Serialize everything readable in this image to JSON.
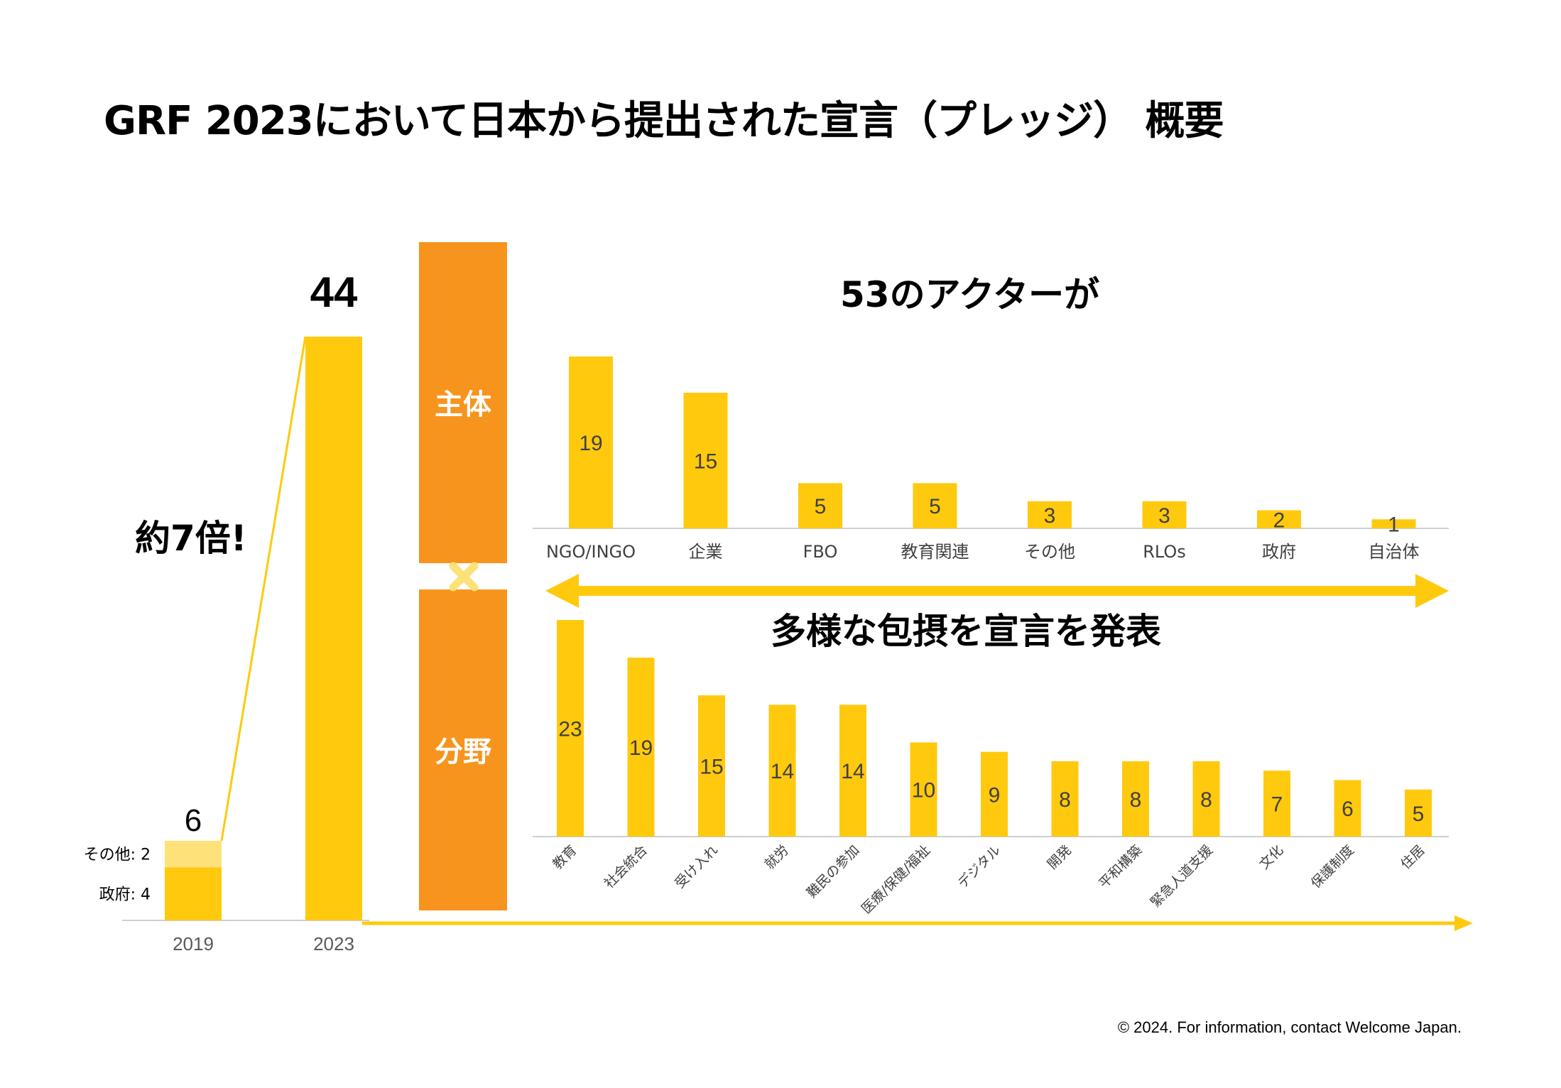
{
  "title": "GRF 2023において日本から提出された宣言（プレッジ） 概要",
  "footer": "© 2024. For information, contact Welcome Japan.",
  "colors": {
    "bar": "#FFC90E",
    "bar_light": "#FFE17A",
    "panel": "#F7941D",
    "cross": "#FFE17A"
  },
  "growth": {
    "label": "約7倍!",
    "total_2023": "44",
    "total_2019": "6",
    "segments_2019": [
      "その他: 2",
      "政府: 4"
    ]
  },
  "panels": {
    "actor": "主体",
    "field": "分野"
  },
  "actor_heading": "53のアクターが",
  "field_heading": "多様な包摂を宣言を発表",
  "chart_data": [
    {
      "type": "bar",
      "categories": [
        "2019",
        "2023"
      ],
      "series": [
        {
          "name": "政府",
          "values": [
            4,
            44
          ]
        },
        {
          "name": "その他",
          "values": [
            2,
            0
          ]
        }
      ],
      "totals": [
        6,
        44
      ],
      "ylim": [
        0,
        44
      ]
    },
    {
      "type": "bar",
      "categories": [
        "NGO/INGO",
        "企業",
        "FBO",
        "教育関連",
        "その他",
        "RLOs",
        "政府",
        "自治体"
      ],
      "values": [
        19,
        15,
        5,
        5,
        3,
        3,
        2,
        1
      ],
      "ylim": [
        0,
        19
      ]
    },
    {
      "type": "bar",
      "categories": [
        "教育",
        "社会統合",
        "受け入れ",
        "就労",
        "難民の参加",
        "医療/保健/福祉",
        "デジタル",
        "開発",
        "平和構築",
        "緊急人道支援",
        "文化",
        "保護制度",
        "住居"
      ],
      "values": [
        23,
        19,
        15,
        14,
        14,
        10,
        9,
        8,
        8,
        8,
        7,
        6,
        5
      ],
      "ylim": [
        0,
        23
      ]
    }
  ]
}
